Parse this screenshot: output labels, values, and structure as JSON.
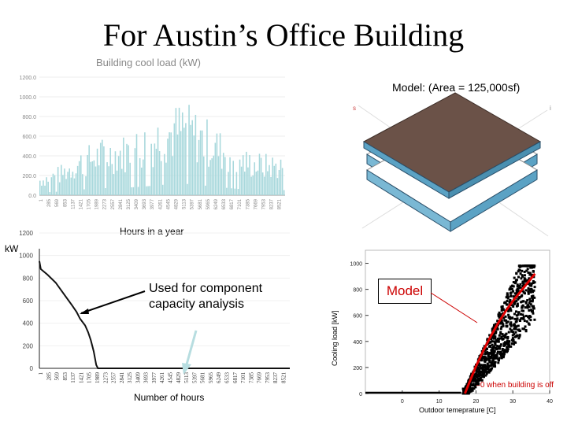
{
  "page": {
    "title": "For Austin’s Office Building",
    "model_area_label": "Model: (Area = 125,000sf)"
  },
  "annotations": {
    "kw_label": "kW",
    "used_for": "Used for component capacity analysis",
    "model_box": "Model",
    "zero_note": "=0 when building is off",
    "iso_left": "s",
    "iso_right": "i"
  },
  "colors": {
    "bar": "#a8d8dc",
    "model_line": "#e00000",
    "roof": "#6b5248",
    "floor_side": "#7ab8d4"
  },
  "chart_data": [
    {
      "type": "bar",
      "title": "Building cool load (kW)",
      "xlabel": "Hours in a year",
      "ylabel": "",
      "ylim": [
        0,
        1200
      ],
      "yticks": [
        "0.0",
        "200.0",
        "400.0",
        "600.0",
        "800.0",
        "1000.0",
        "1200.0"
      ],
      "xticks": [
        "1",
        "285",
        "569",
        "853",
        "1137",
        "1421",
        "1705",
        "1989",
        "2273",
        "2557",
        "2841",
        "3125",
        "3409",
        "3693",
        "3977",
        "4261",
        "4545",
        "4829",
        "5113",
        "5397",
        "5681",
        "5965",
        "6249",
        "6533",
        "6817",
        "7101",
        "7385",
        "7669",
        "7953",
        "8237",
        "8521"
      ],
      "monthly_peak_envelope": [
        220,
        310,
        480,
        590,
        620,
        720,
        880,
        980,
        820,
        640,
        480,
        430
      ]
    },
    {
      "type": "line",
      "title": "",
      "xlabel": "Number of hours",
      "ylabel": "kW",
      "ylim": [
        0,
        1200
      ],
      "yticks": [
        "0",
        "200",
        "400",
        "600",
        "800",
        "1000",
        "1200"
      ],
      "xticks": [
        "1",
        "285",
        "569",
        "853",
        "1137",
        "1421",
        "1705",
        "1989",
        "2273",
        "2557",
        "2841",
        "3125",
        "3409",
        "3693",
        "3977",
        "4261",
        "4545",
        "4829",
        "5113",
        "5397",
        "5681",
        "5965",
        "6249",
        "6533",
        "6817",
        "7101",
        "7385",
        "7669",
        "7953",
        "8237",
        "8521"
      ],
      "x": [
        1,
        50,
        285,
        569,
        853,
        1137,
        1300,
        1421,
        1600,
        1705,
        1800,
        1900,
        1989,
        2050,
        2273,
        2557,
        8760
      ],
      "y": [
        950,
        880,
        830,
        760,
        660,
        560,
        500,
        440,
        380,
        320,
        250,
        150,
        30,
        0,
        0,
        0,
        0
      ]
    },
    {
      "type": "scatter",
      "title": "",
      "xlabel": "Outdoor temeprature [C]",
      "ylabel": "Cooling load [kW]",
      "xlim": [
        -10,
        40
      ],
      "ylim": [
        0,
        1100
      ],
      "xticks": [
        "0",
        "10",
        "20",
        "30",
        "40"
      ],
      "yticks": [
        "0",
        "200",
        "400",
        "600",
        "800",
        "1000"
      ],
      "series": [
        {
          "name": "",
          "kind": "scatter",
          "x_range": [
            15,
            36
          ],
          "y_range": [
            0,
            980
          ]
        },
        {
          "name": "",
          "kind": "line",
          "x": [
            17,
            18,
            20,
            22,
            24,
            26,
            28,
            30,
            32,
            34,
            36
          ],
          "y": [
            0,
            70,
            210,
            330,
            440,
            540,
            630,
            710,
            780,
            850,
            920
          ]
        }
      ]
    }
  ]
}
